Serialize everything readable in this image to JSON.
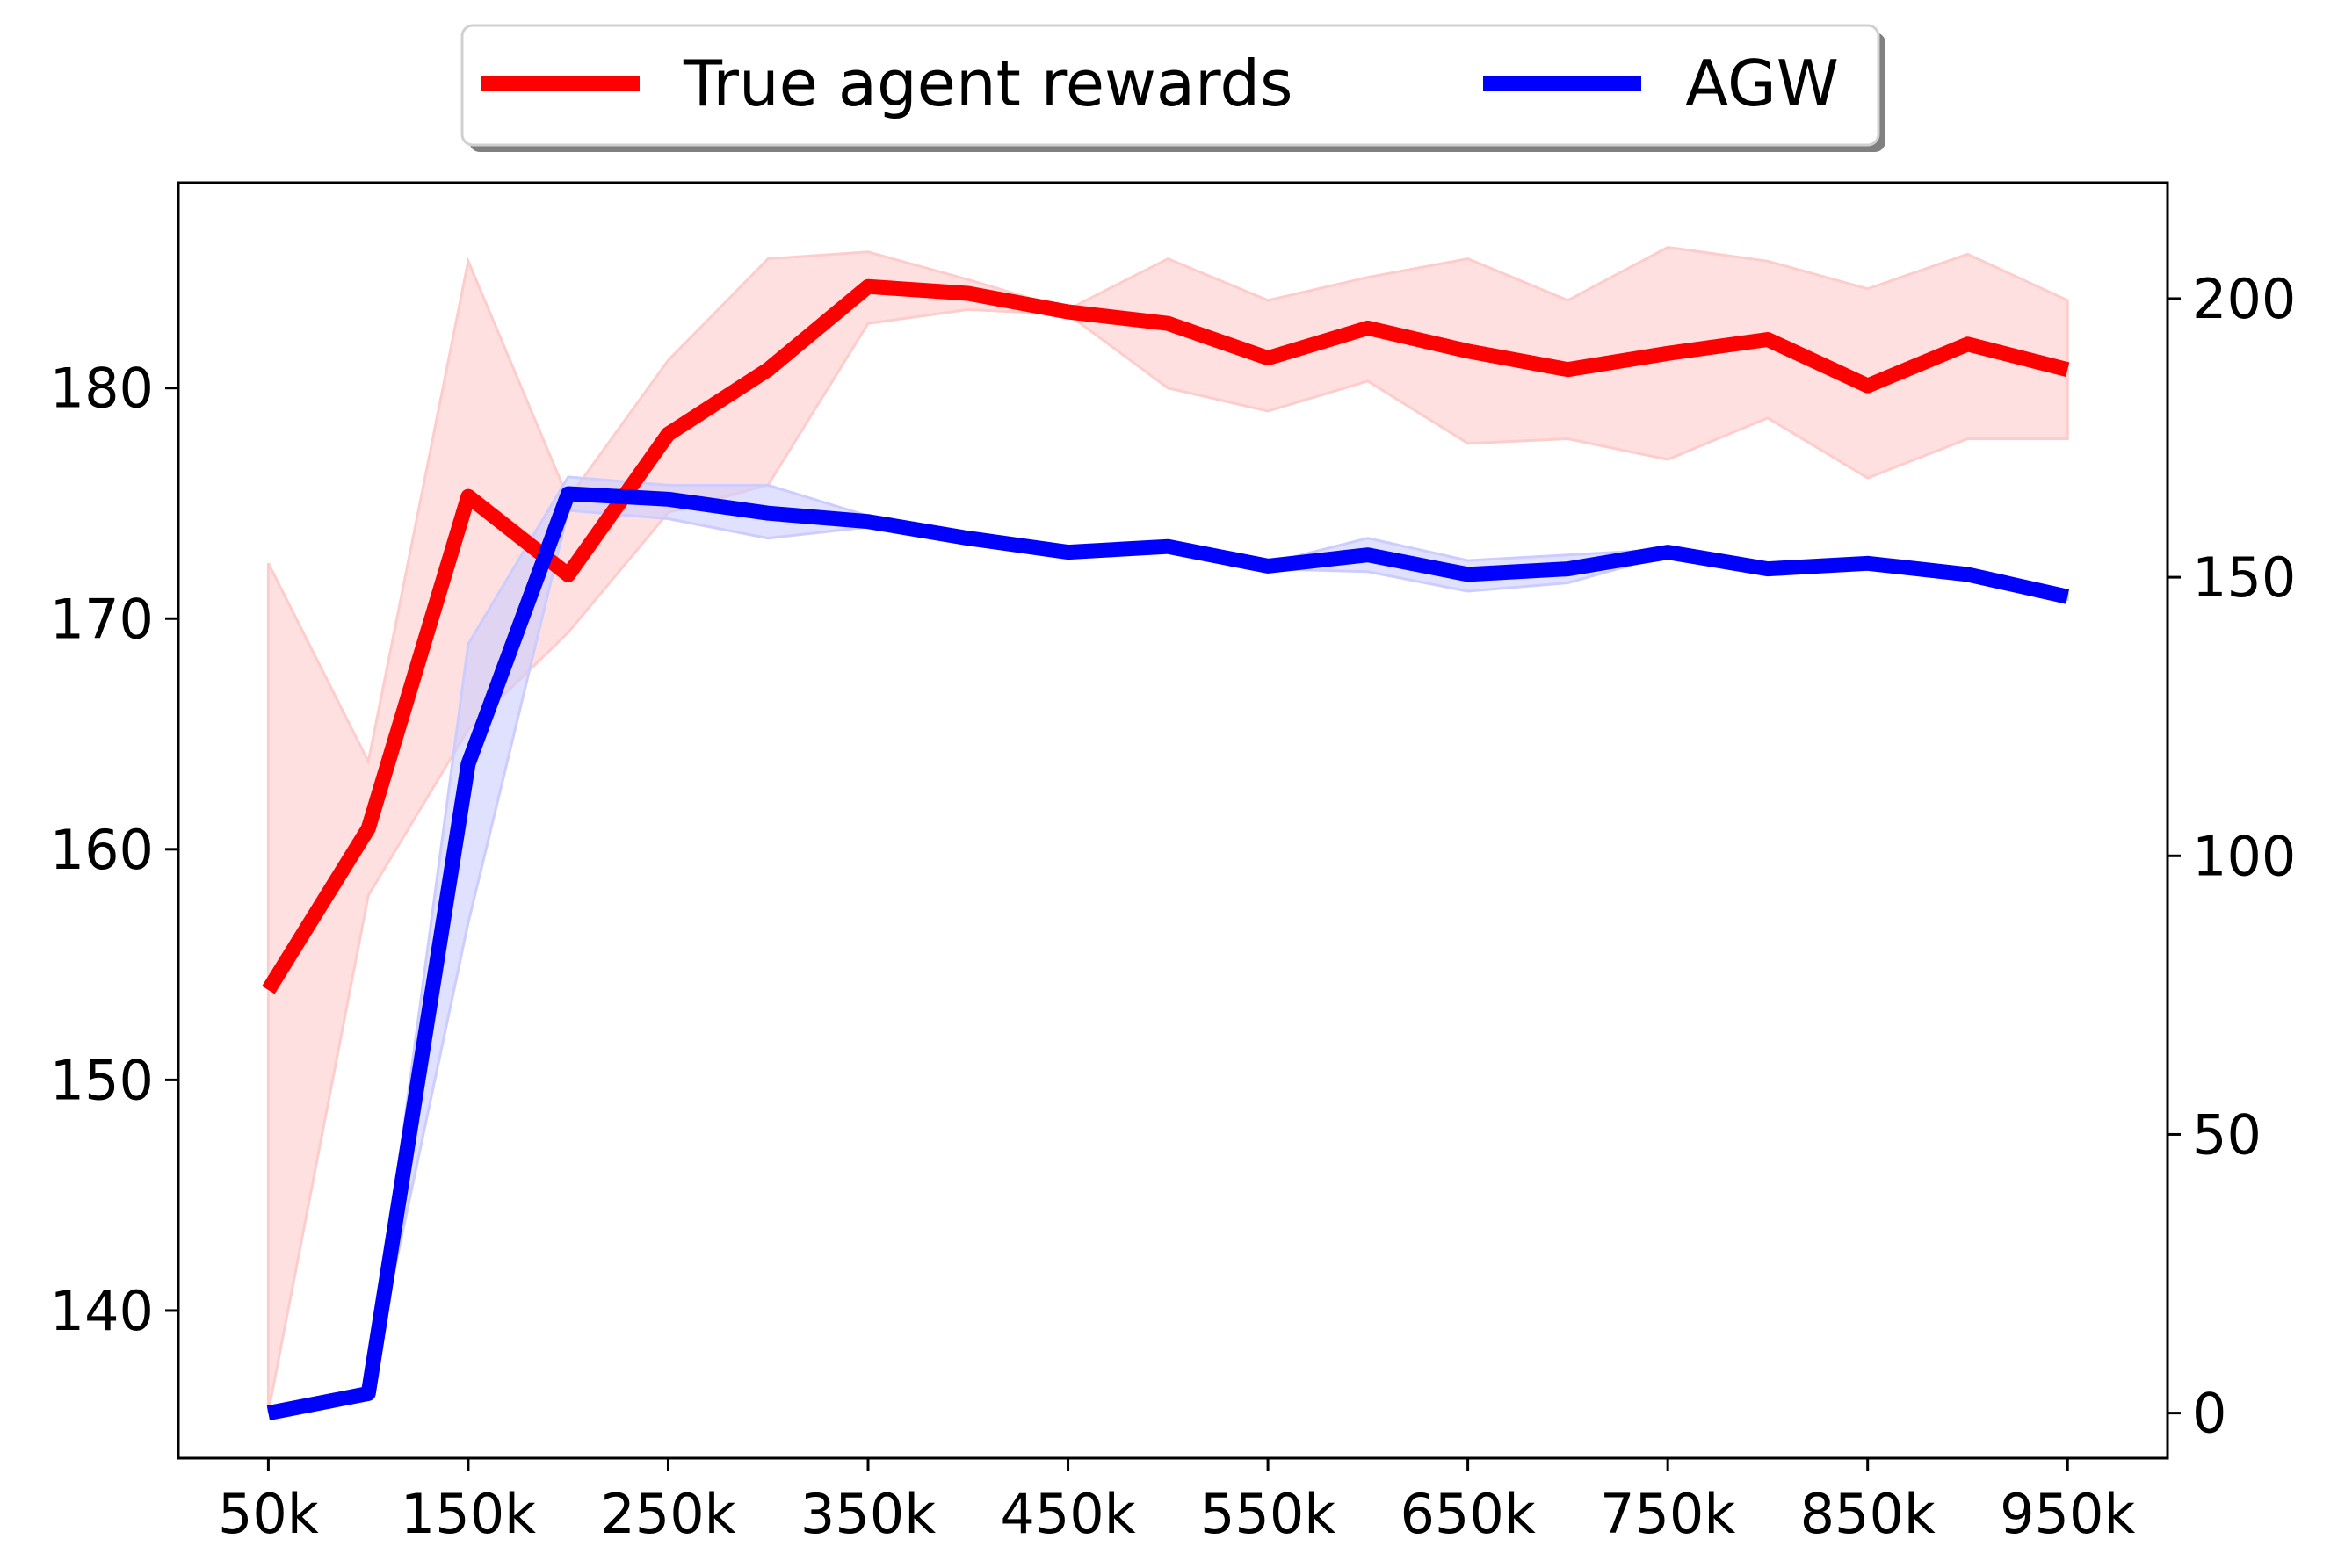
{
  "chart_data": {
    "type": "line",
    "title": "",
    "xlabel": "",
    "ylabel": "",
    "ylabel_right": "",
    "grid": false,
    "legend_position": "top-center",
    "x": [
      50,
      100,
      150,
      200,
      250,
      300,
      350,
      400,
      450,
      500,
      550,
      600,
      650,
      700,
      750,
      800,
      850,
      900,
      950
    ],
    "x_ticks": [
      50,
      150,
      250,
      350,
      450,
      550,
      650,
      750,
      850,
      950
    ],
    "x_tick_labels": [
      "50k",
      "150k",
      "250k",
      "350k",
      "450k",
      "550k",
      "650k",
      "750k",
      "850k",
      "950k"
    ],
    "xlim": [
      5,
      1000
    ],
    "y_left": {
      "lim": [
        133.6,
        188.9
      ],
      "ticks": [
        140,
        150,
        160,
        170,
        180
      ],
      "tick_labels": [
        "140",
        "150",
        "160",
        "170",
        "180"
      ]
    },
    "y_right": {
      "lim": [
        -8.1,
        220.8
      ],
      "ticks": [
        0,
        50,
        100,
        150,
        200
      ],
      "tick_labels": [
        "0",
        "50",
        "100",
        "150",
        "200"
      ]
    },
    "series": [
      {
        "name": "True agent rewards",
        "axis": "left",
        "color": "#ff0000",
        "band_color": "#ffcccc",
        "values": [
          153.9,
          160.9,
          175.3,
          171.9,
          178.0,
          180.8,
          184.4,
          184.1,
          183.3,
          182.8,
          181.3,
          182.6,
          181.6,
          180.8,
          181.5,
          182.1,
          180.1,
          181.9,
          180.8
        ],
        "upper": [
          172.4,
          163.8,
          185.5,
          175.2,
          181.2,
          185.6,
          185.9,
          184.7,
          183.4,
          185.6,
          183.8,
          184.8,
          185.6,
          183.8,
          186.1,
          185.5,
          184.3,
          185.8,
          183.8
        ],
        "lower": [
          135.6,
          158.0,
          165.2,
          169.4,
          174.6,
          175.8,
          182.8,
          183.4,
          183.2,
          180.0,
          179.0,
          180.3,
          177.6,
          177.8,
          176.9,
          178.7,
          176.1,
          177.8,
          177.8
        ]
      },
      {
        "name": "AGW",
        "axis": "right",
        "color": "#0000ff",
        "band_color": "#ccccff",
        "values": [
          0,
          3.5,
          116.5,
          165,
          164,
          161.5,
          160,
          157,
          154.5,
          155.5,
          152,
          154,
          150.5,
          151.5,
          154.5,
          151.5,
          152.5,
          150.5,
          146.5
        ],
        "upper": [
          0,
          3.5,
          138,
          168,
          166.5,
          166.5,
          161,
          157.5,
          155,
          156,
          152.5,
          157,
          153,
          154,
          155,
          152.5,
          153,
          151.5,
          147
        ],
        "lower": [
          0,
          3.5,
          88,
          162,
          160.5,
          157,
          159,
          156.5,
          154,
          155,
          151.5,
          151,
          147.5,
          149,
          154,
          150.5,
          152,
          149.5,
          146
        ]
      }
    ]
  }
}
